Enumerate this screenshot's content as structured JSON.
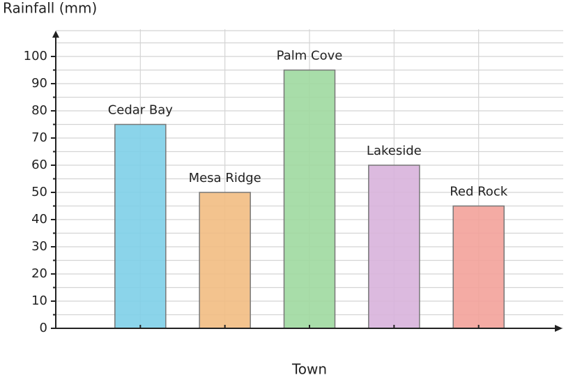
{
  "chart_data": {
    "type": "bar",
    "y_label": "Rainfall (mm)",
    "x_label": "Town",
    "categories": [
      "Cedar Bay",
      "Mesa Ridge",
      "Palm Cove",
      "Lakeside",
      "Red Rock"
    ],
    "values": [
      75,
      50,
      95,
      60,
      45
    ],
    "colors": [
      "#7ecfe8",
      "#f2bc82",
      "#9fd9a0",
      "#d8b2dc",
      "#f3a29a"
    ],
    "ylim": [
      0,
      110
    ],
    "yticks": [
      0,
      10,
      20,
      30,
      40,
      50,
      60,
      70,
      80,
      90,
      100
    ],
    "grid": true
  }
}
